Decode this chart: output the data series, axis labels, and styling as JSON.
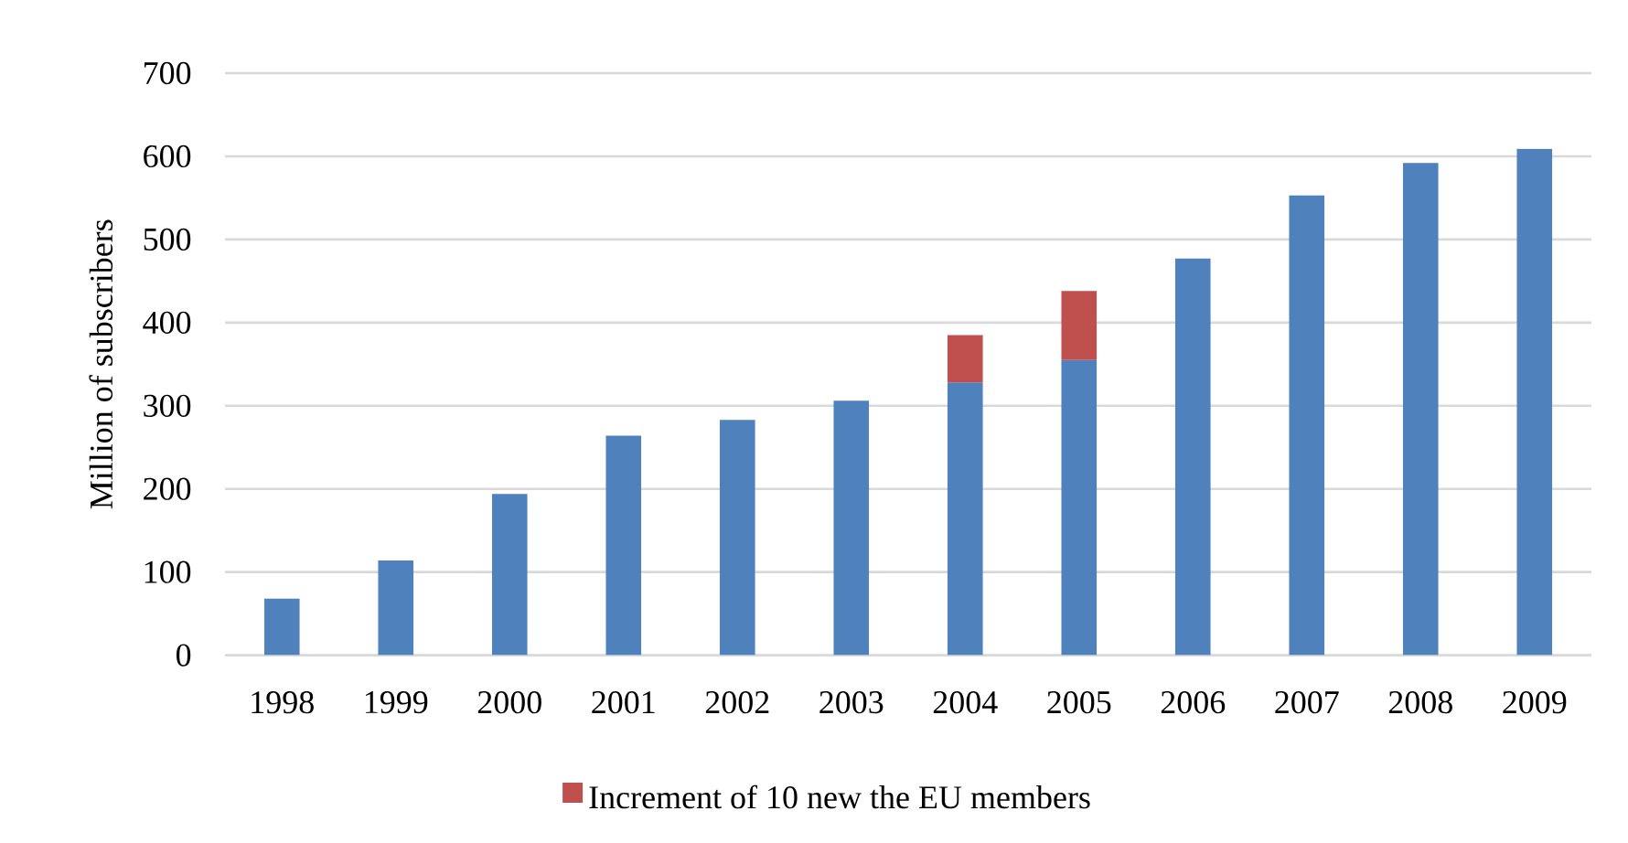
{
  "chart_data": {
    "type": "bar",
    "ylabel": "Million of subscribers",
    "categories": [
      "1998",
      "1999",
      "2000",
      "2001",
      "2002",
      "2003",
      "2004",
      "2005",
      "2006",
      "2007",
      "2008",
      "2009"
    ],
    "series": [
      {
        "color": "#4f81bd",
        "values": [
          68,
          114,
          194,
          264,
          283,
          306,
          328,
          355,
          477,
          553,
          592,
          609
        ]
      },
      {
        "name": "Increment of 10 new the EU members",
        "color": "#c0504d",
        "values": [
          null,
          null,
          null,
          null,
          null,
          null,
          57,
          83,
          null,
          null,
          null,
          null
        ]
      }
    ],
    "stacked": true,
    "ylim": [
      0,
      700
    ],
    "yticks": [
      0,
      100,
      200,
      300,
      400,
      500,
      600,
      700
    ],
    "grid": "y",
    "legend": "bottom"
  }
}
